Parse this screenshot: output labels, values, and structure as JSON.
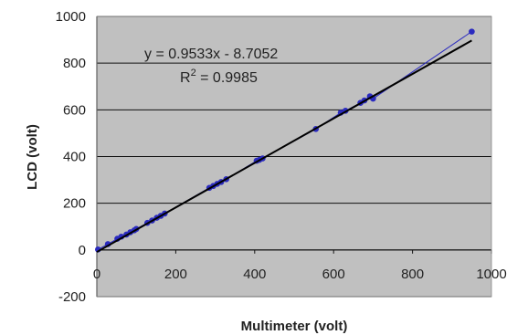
{
  "chart_data": {
    "type": "scatter",
    "xlabel": "Multimeter (volt)",
    "ylabel": "LCD (volt)",
    "xlim": [
      0,
      1000
    ],
    "ylim": [
      -200,
      1000
    ],
    "x_ticks": [
      "0",
      "200",
      "400",
      "600",
      "800",
      "1000"
    ],
    "y_ticks": [
      "-200",
      "0",
      "200",
      "400",
      "600",
      "800",
      "1000"
    ],
    "grid": true,
    "plot_background": "#c0c0c0",
    "series": [
      {
        "values": [
          [
            3,
            2
          ],
          [
            28,
            25
          ],
          [
            52,
            48
          ],
          [
            62,
            57
          ],
          [
            75,
            66
          ],
          [
            85,
            76
          ],
          [
            95,
            84
          ],
          [
            100,
            90
          ],
          [
            128,
            116
          ],
          [
            140,
            126
          ],
          [
            152,
            138
          ],
          [
            162,
            146
          ],
          [
            172,
            156
          ],
          [
            285,
            266
          ],
          [
            295,
            274
          ],
          [
            305,
            283
          ],
          [
            315,
            291
          ],
          [
            328,
            303
          ],
          [
            405,
            382
          ],
          [
            412,
            386
          ],
          [
            420,
            392
          ],
          [
            555,
            518
          ],
          [
            618,
            588
          ],
          [
            630,
            596
          ],
          [
            668,
            630
          ],
          [
            678,
            640
          ],
          [
            692,
            658
          ],
          [
            700,
            648
          ],
          [
            950,
            935
          ]
        ],
        "color": "#2b2bbf",
        "connect": true
      }
    ],
    "trendline": {
      "slope": 0.9533,
      "intercept": -8.7052,
      "x_range": [
        0,
        950
      ],
      "color": "#000000"
    },
    "annotations": {
      "equation": "y = 0.9533x - 8.7052",
      "r2_prefix": "R",
      "r2_sup": "2",
      "r2_suffix": " = 0.9985"
    }
  }
}
